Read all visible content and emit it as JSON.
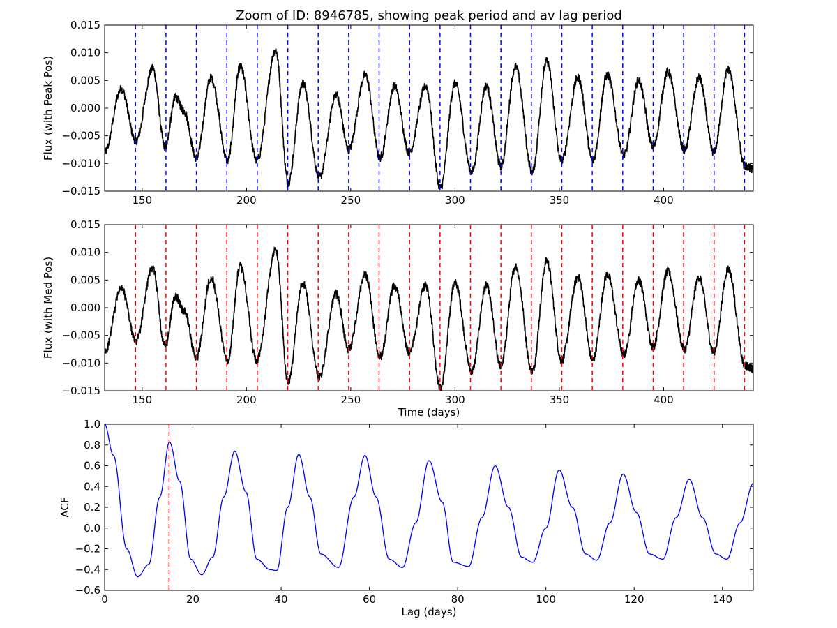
{
  "figure": {
    "title": "Zoom of ID: 8946785, showing peak period and av lag period"
  },
  "chart_data": [
    {
      "type": "line",
      "title": "Zoom of ID: 8946785, showing peak period and av lag period",
      "xlabel": "",
      "ylabel": "Flux (with Peak Pos)",
      "xlim": [
        132,
        443
      ],
      "ylim": [
        -0.015,
        0.015
      ],
      "xticks": [
        150,
        200,
        250,
        300,
        350,
        400
      ],
      "xtick_labels": [
        "150",
        "200",
        "250",
        "300",
        "350",
        "400"
      ],
      "yticks": [
        -0.015,
        -0.01,
        -0.005,
        0.0,
        0.005,
        0.01,
        0.015
      ],
      "ytick_labels": [
        "−0.015",
        "−0.010",
        "−0.005",
        "0.000",
        "0.005",
        "0.010",
        "0.015"
      ],
      "vlines": [
        146.8,
        161.4,
        176.0,
        190.6,
        205.2,
        219.8,
        234.4,
        249.0,
        263.6,
        278.2,
        292.8,
        307.4,
        322.0,
        336.6,
        351.2,
        365.8,
        380.4,
        395.0,
        409.6,
        424.2,
        438.8
      ],
      "vline_color": "#0000ff",
      "series_color": "#000000",
      "series": [
        {
          "x": [
            132,
            140,
            147,
            155,
            161,
            166,
            170,
            176,
            183,
            191,
            197,
            205,
            214,
            220,
            227,
            235,
            243,
            249,
            257,
            264,
            271,
            278,
            286,
            293,
            300,
            308,
            315,
            322,
            329,
            337,
            344,
            351,
            359,
            366,
            373,
            381,
            388,
            395,
            402,
            410,
            417,
            424,
            431,
            439,
            443
          ],
          "y": [
            -0.008,
            0.0035,
            -0.006,
            0.0072,
            -0.007,
            0.002,
            -0.0005,
            -0.009,
            0.0055,
            -0.0095,
            0.0075,
            -0.0095,
            0.0105,
            -0.0135,
            0.0045,
            -0.0125,
            0.0025,
            -0.0075,
            0.006,
            -0.009,
            0.004,
            -0.008,
            0.004,
            -0.0145,
            0.0045,
            -0.0115,
            0.004,
            -0.0105,
            0.0075,
            -0.0115,
            0.0085,
            -0.0095,
            0.0055,
            -0.0095,
            0.006,
            -0.0085,
            0.005,
            -0.007,
            0.0065,
            -0.0075,
            0.0055,
            -0.008,
            0.007,
            -0.0105,
            -0.011
          ]
        }
      ]
    },
    {
      "type": "line",
      "xlabel": "Time (days)",
      "ylabel": "Flux (with Med Pos)",
      "xlim": [
        132,
        443
      ],
      "ylim": [
        -0.015,
        0.015
      ],
      "xticks": [
        150,
        200,
        250,
        300,
        350,
        400
      ],
      "xtick_labels": [
        "150",
        "200",
        "250",
        "300",
        "350",
        "400"
      ],
      "yticks": [
        -0.015,
        -0.01,
        -0.005,
        0.0,
        0.005,
        0.01,
        0.015
      ],
      "ytick_labels": [
        "−0.015",
        "−0.010",
        "−0.005",
        "0.000",
        "0.005",
        "0.010",
        "0.015"
      ],
      "vlines": [
        146.8,
        161.4,
        176.0,
        190.6,
        205.2,
        219.8,
        234.4,
        249.0,
        263.6,
        278.2,
        292.8,
        307.4,
        322.0,
        336.6,
        351.2,
        365.8,
        380.4,
        395.0,
        409.6,
        424.2,
        438.8
      ],
      "vline_color": "#ff0000",
      "series_color": "#000000",
      "series": [
        {
          "x": [
            132,
            140,
            147,
            155,
            161,
            166,
            170,
            176,
            183,
            191,
            197,
            205,
            214,
            220,
            227,
            235,
            243,
            249,
            257,
            264,
            271,
            278,
            286,
            293,
            300,
            308,
            315,
            322,
            329,
            337,
            344,
            351,
            359,
            366,
            373,
            381,
            388,
            395,
            402,
            410,
            417,
            424,
            431,
            439,
            443
          ],
          "y": [
            -0.008,
            0.0035,
            -0.006,
            0.0072,
            -0.007,
            0.002,
            -0.0005,
            -0.009,
            0.0055,
            -0.0095,
            0.0075,
            -0.0095,
            0.0105,
            -0.0135,
            0.0045,
            -0.0125,
            0.0025,
            -0.0075,
            0.006,
            -0.009,
            0.004,
            -0.008,
            0.004,
            -0.0145,
            0.0045,
            -0.0115,
            0.004,
            -0.0105,
            0.0075,
            -0.0115,
            0.0085,
            -0.0095,
            0.0055,
            -0.0095,
            0.006,
            -0.0085,
            0.005,
            -0.007,
            0.0065,
            -0.0075,
            0.0055,
            -0.008,
            0.007,
            -0.0105,
            -0.011
          ]
        }
      ]
    },
    {
      "type": "line",
      "xlabel": "Lag (days)",
      "ylabel": "ACF",
      "xlim": [
        0,
        147
      ],
      "ylim": [
        -0.6,
        1.0
      ],
      "xticks": [
        0,
        20,
        40,
        60,
        80,
        100,
        120,
        140
      ],
      "xtick_labels": [
        "0",
        "20",
        "40",
        "60",
        "80",
        "100",
        "120",
        "140"
      ],
      "yticks": [
        -0.6,
        -0.4,
        -0.2,
        0.0,
        0.2,
        0.4,
        0.6,
        0.8,
        1.0
      ],
      "ytick_labels": [
        "−0.6",
        "−0.4",
        "−0.2",
        "0.0",
        "0.2",
        "0.4",
        "0.6",
        "0.8",
        "1.0"
      ],
      "vlines": [
        14.6
      ],
      "vline_color": "#ff0000",
      "series_color": "#0000ff",
      "series": [
        {
          "x": [
            0,
            2,
            5,
            7.5,
            10,
            12.5,
            14.7,
            17,
            19.5,
            22,
            24.5,
            27,
            29.5,
            32,
            34.5,
            37.5,
            39,
            41.5,
            44,
            46.5,
            49,
            53,
            56.5,
            59,
            61.5,
            64.5,
            67.5,
            70.5,
            73.5,
            76.5,
            79,
            82.5,
            85.5,
            88.5,
            91.5,
            94.5,
            97,
            100,
            103,
            106,
            109,
            111.5,
            114.5,
            117.5,
            120.5,
            123.5,
            126.5,
            129.5,
            132.5,
            135.5,
            138.5,
            141,
            144,
            147
          ],
          "y": [
            1.0,
            0.7,
            -0.2,
            -0.47,
            -0.35,
            0.3,
            0.83,
            0.45,
            -0.3,
            -0.45,
            -0.28,
            0.3,
            0.74,
            0.35,
            -0.3,
            -0.4,
            -0.41,
            0.2,
            0.71,
            0.3,
            -0.25,
            -0.38,
            0.3,
            0.7,
            0.3,
            -0.3,
            -0.38,
            0.05,
            0.65,
            0.25,
            -0.33,
            -0.37,
            0.1,
            0.6,
            0.2,
            -0.28,
            -0.33,
            0.0,
            0.56,
            0.2,
            -0.25,
            -0.31,
            0.05,
            0.52,
            0.15,
            -0.25,
            -0.3,
            0.1,
            0.47,
            0.1,
            -0.25,
            -0.3,
            0.05,
            0.43
          ]
        }
      ]
    }
  ]
}
